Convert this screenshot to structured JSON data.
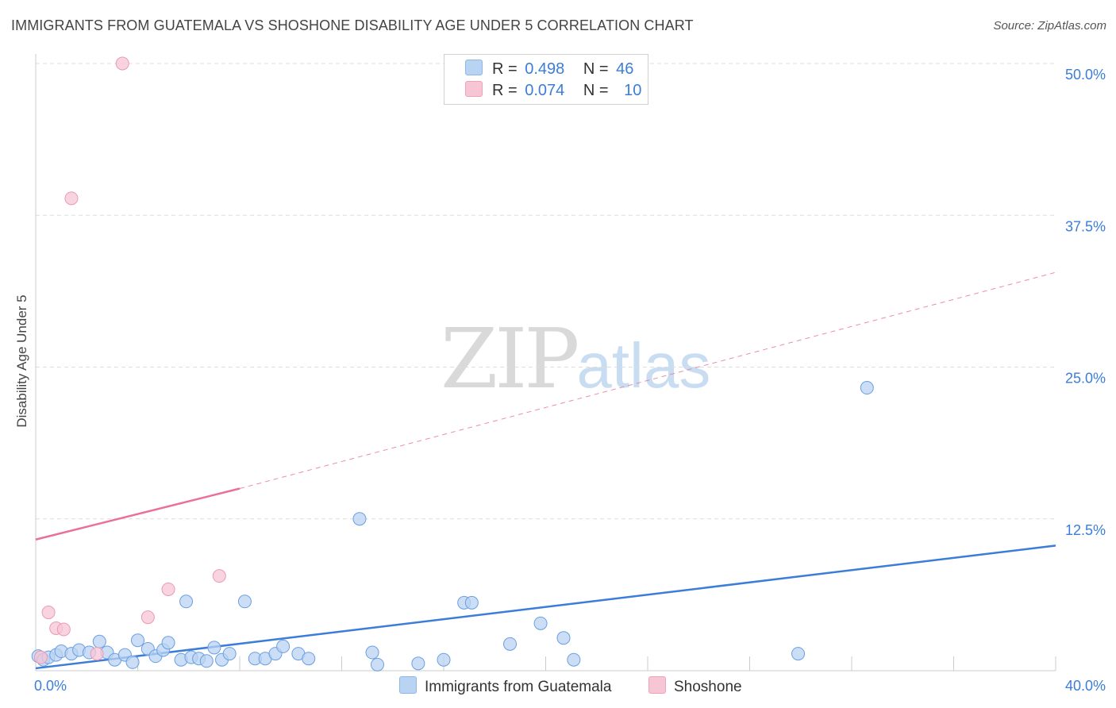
{
  "title": "IMMIGRANTS FROM GUATEMALA VS SHOSHONE DISABILITY AGE UNDER 5 CORRELATION CHART",
  "source": "Source: ZipAtlas.com",
  "watermark": {
    "zip": "ZIP",
    "atlas": "atlas"
  },
  "colors": {
    "blue": "#3b7dd8",
    "blue_fill": "#b9d3f3",
    "pink": "#e8709a",
    "pink_fill": "#f7c6d5",
    "grid": "#dddddd"
  },
  "legend": {
    "rows": [
      {
        "swatch": "#b9d3f3",
        "swatch_border": "#8fb6e8",
        "r_label": "R =",
        "r_value": "0.498",
        "n_label": "N =",
        "n_value": "46"
      },
      {
        "swatch": "#f7c6d5",
        "swatch_border": "#eea3bb",
        "r_label": "R =",
        "r_value": "0.074",
        "n_label": "N =",
        "n_value": "10"
      }
    ]
  },
  "bottom_legend": [
    {
      "label": "Immigrants from Guatemala",
      "swatch": "#b9d3f3"
    },
    {
      "label": "Shoshone",
      "swatch": "#f7c6d5"
    }
  ],
  "chart_data": {
    "type": "scatter",
    "title": "IMMIGRANTS FROM GUATEMALA VS SHOSHONE DISABILITY AGE UNDER 5 CORRELATION CHART",
    "xlabel": "",
    "ylabel": "Disability Age Under 5",
    "xlim": [
      0,
      40
    ],
    "ylim": [
      0,
      50
    ],
    "x_tick_labels": [
      "0.0%",
      "40.0%"
    ],
    "y_ticks": [
      12.5,
      25.0,
      37.5,
      50.0
    ],
    "y_tick_labels": [
      "12.5%",
      "25.0%",
      "37.5%",
      "50.0%"
    ],
    "grid": true,
    "series": [
      {
        "name": "Immigrants from Guatemala",
        "color": "#3b7dd8",
        "points": [
          [
            0.1,
            1.2
          ],
          [
            0.3,
            0.9
          ],
          [
            0.5,
            1.1
          ],
          [
            0.8,
            1.3
          ],
          [
            1.0,
            1.6
          ],
          [
            1.4,
            1.4
          ],
          [
            1.7,
            1.7
          ],
          [
            2.1,
            1.5
          ],
          [
            2.5,
            2.4
          ],
          [
            2.8,
            1.5
          ],
          [
            3.1,
            0.9
          ],
          [
            3.5,
            1.3
          ],
          [
            3.8,
            0.7
          ],
          [
            4.0,
            2.5
          ],
          [
            4.4,
            1.8
          ],
          [
            4.7,
            1.2
          ],
          [
            5.0,
            1.7
          ],
          [
            5.2,
            2.3
          ],
          [
            5.7,
            0.9
          ],
          [
            5.9,
            5.7
          ],
          [
            6.1,
            1.1
          ],
          [
            6.4,
            1.0
          ],
          [
            6.7,
            0.8
          ],
          [
            7.0,
            1.9
          ],
          [
            7.3,
            0.9
          ],
          [
            7.6,
            1.4
          ],
          [
            8.2,
            5.7
          ],
          [
            8.6,
            1.0
          ],
          [
            9.0,
            1.0
          ],
          [
            9.4,
            1.4
          ],
          [
            9.7,
            2.0
          ],
          [
            10.3,
            1.4
          ],
          [
            10.7,
            1.0
          ],
          [
            12.7,
            12.5
          ],
          [
            13.2,
            1.5
          ],
          [
            13.4,
            0.5
          ],
          [
            15.0,
            0.6
          ],
          [
            16.0,
            0.9
          ],
          [
            16.8,
            5.6
          ],
          [
            17.1,
            5.6
          ],
          [
            18.6,
            2.2
          ],
          [
            19.8,
            3.9
          ],
          [
            20.7,
            2.7
          ],
          [
            21.1,
            0.9
          ],
          [
            29.9,
            1.4
          ],
          [
            32.6,
            23.3
          ]
        ],
        "trend": {
          "x": [
            0,
            40
          ],
          "y": [
            0.2,
            10.3
          ],
          "style": "solid"
        }
      },
      {
        "name": "Shoshone",
        "color": "#e8709a",
        "points": [
          [
            0.2,
            1.1
          ],
          [
            0.5,
            4.8
          ],
          [
            0.8,
            3.5
          ],
          [
            1.1,
            3.4
          ],
          [
            1.4,
            38.9
          ],
          [
            2.4,
            1.4
          ],
          [
            3.4,
            50.0
          ],
          [
            4.4,
            4.4
          ],
          [
            5.2,
            6.7
          ],
          [
            7.2,
            7.8
          ]
        ],
        "trend": {
          "x": [
            0,
            8
          ],
          "y": [
            10.8,
            15.0
          ],
          "style": "solid",
          "extended": {
            "x": [
              8,
              40
            ],
            "y": [
              15.0,
              32.8
            ],
            "style": "dashed"
          }
        }
      }
    ]
  }
}
